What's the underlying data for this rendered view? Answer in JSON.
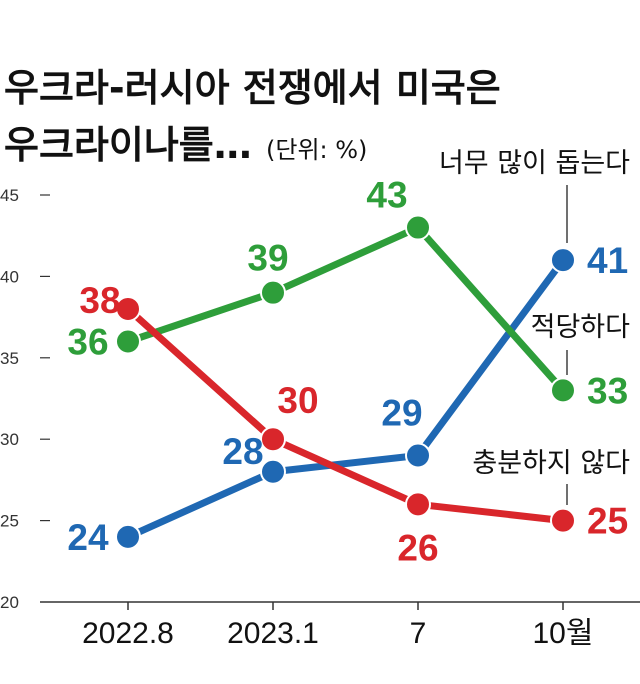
{
  "title_line1": "우크라-러시아 전쟁에서 미국은",
  "title_line2": "우크라이나를…",
  "unit": "(단위: %)",
  "chart_data": {
    "type": "line",
    "categories": [
      "2022.8",
      "2023.1",
      "7",
      "10월"
    ],
    "ylim": [
      20,
      45
    ],
    "yticks": [
      20,
      25,
      30,
      35,
      40,
      45
    ],
    "grid": false,
    "series": [
      {
        "name": "너무 많이 돕는다",
        "color": "#1f68b3",
        "values": [
          24,
          28,
          29,
          41
        ]
      },
      {
        "name": "적당하다",
        "color": "#2e9e3a",
        "values": [
          36,
          39,
          43,
          33
        ]
      },
      {
        "name": "충분하지 않다",
        "color": "#d9262b",
        "values": [
          38,
          30,
          26,
          25
        ]
      }
    ]
  }
}
